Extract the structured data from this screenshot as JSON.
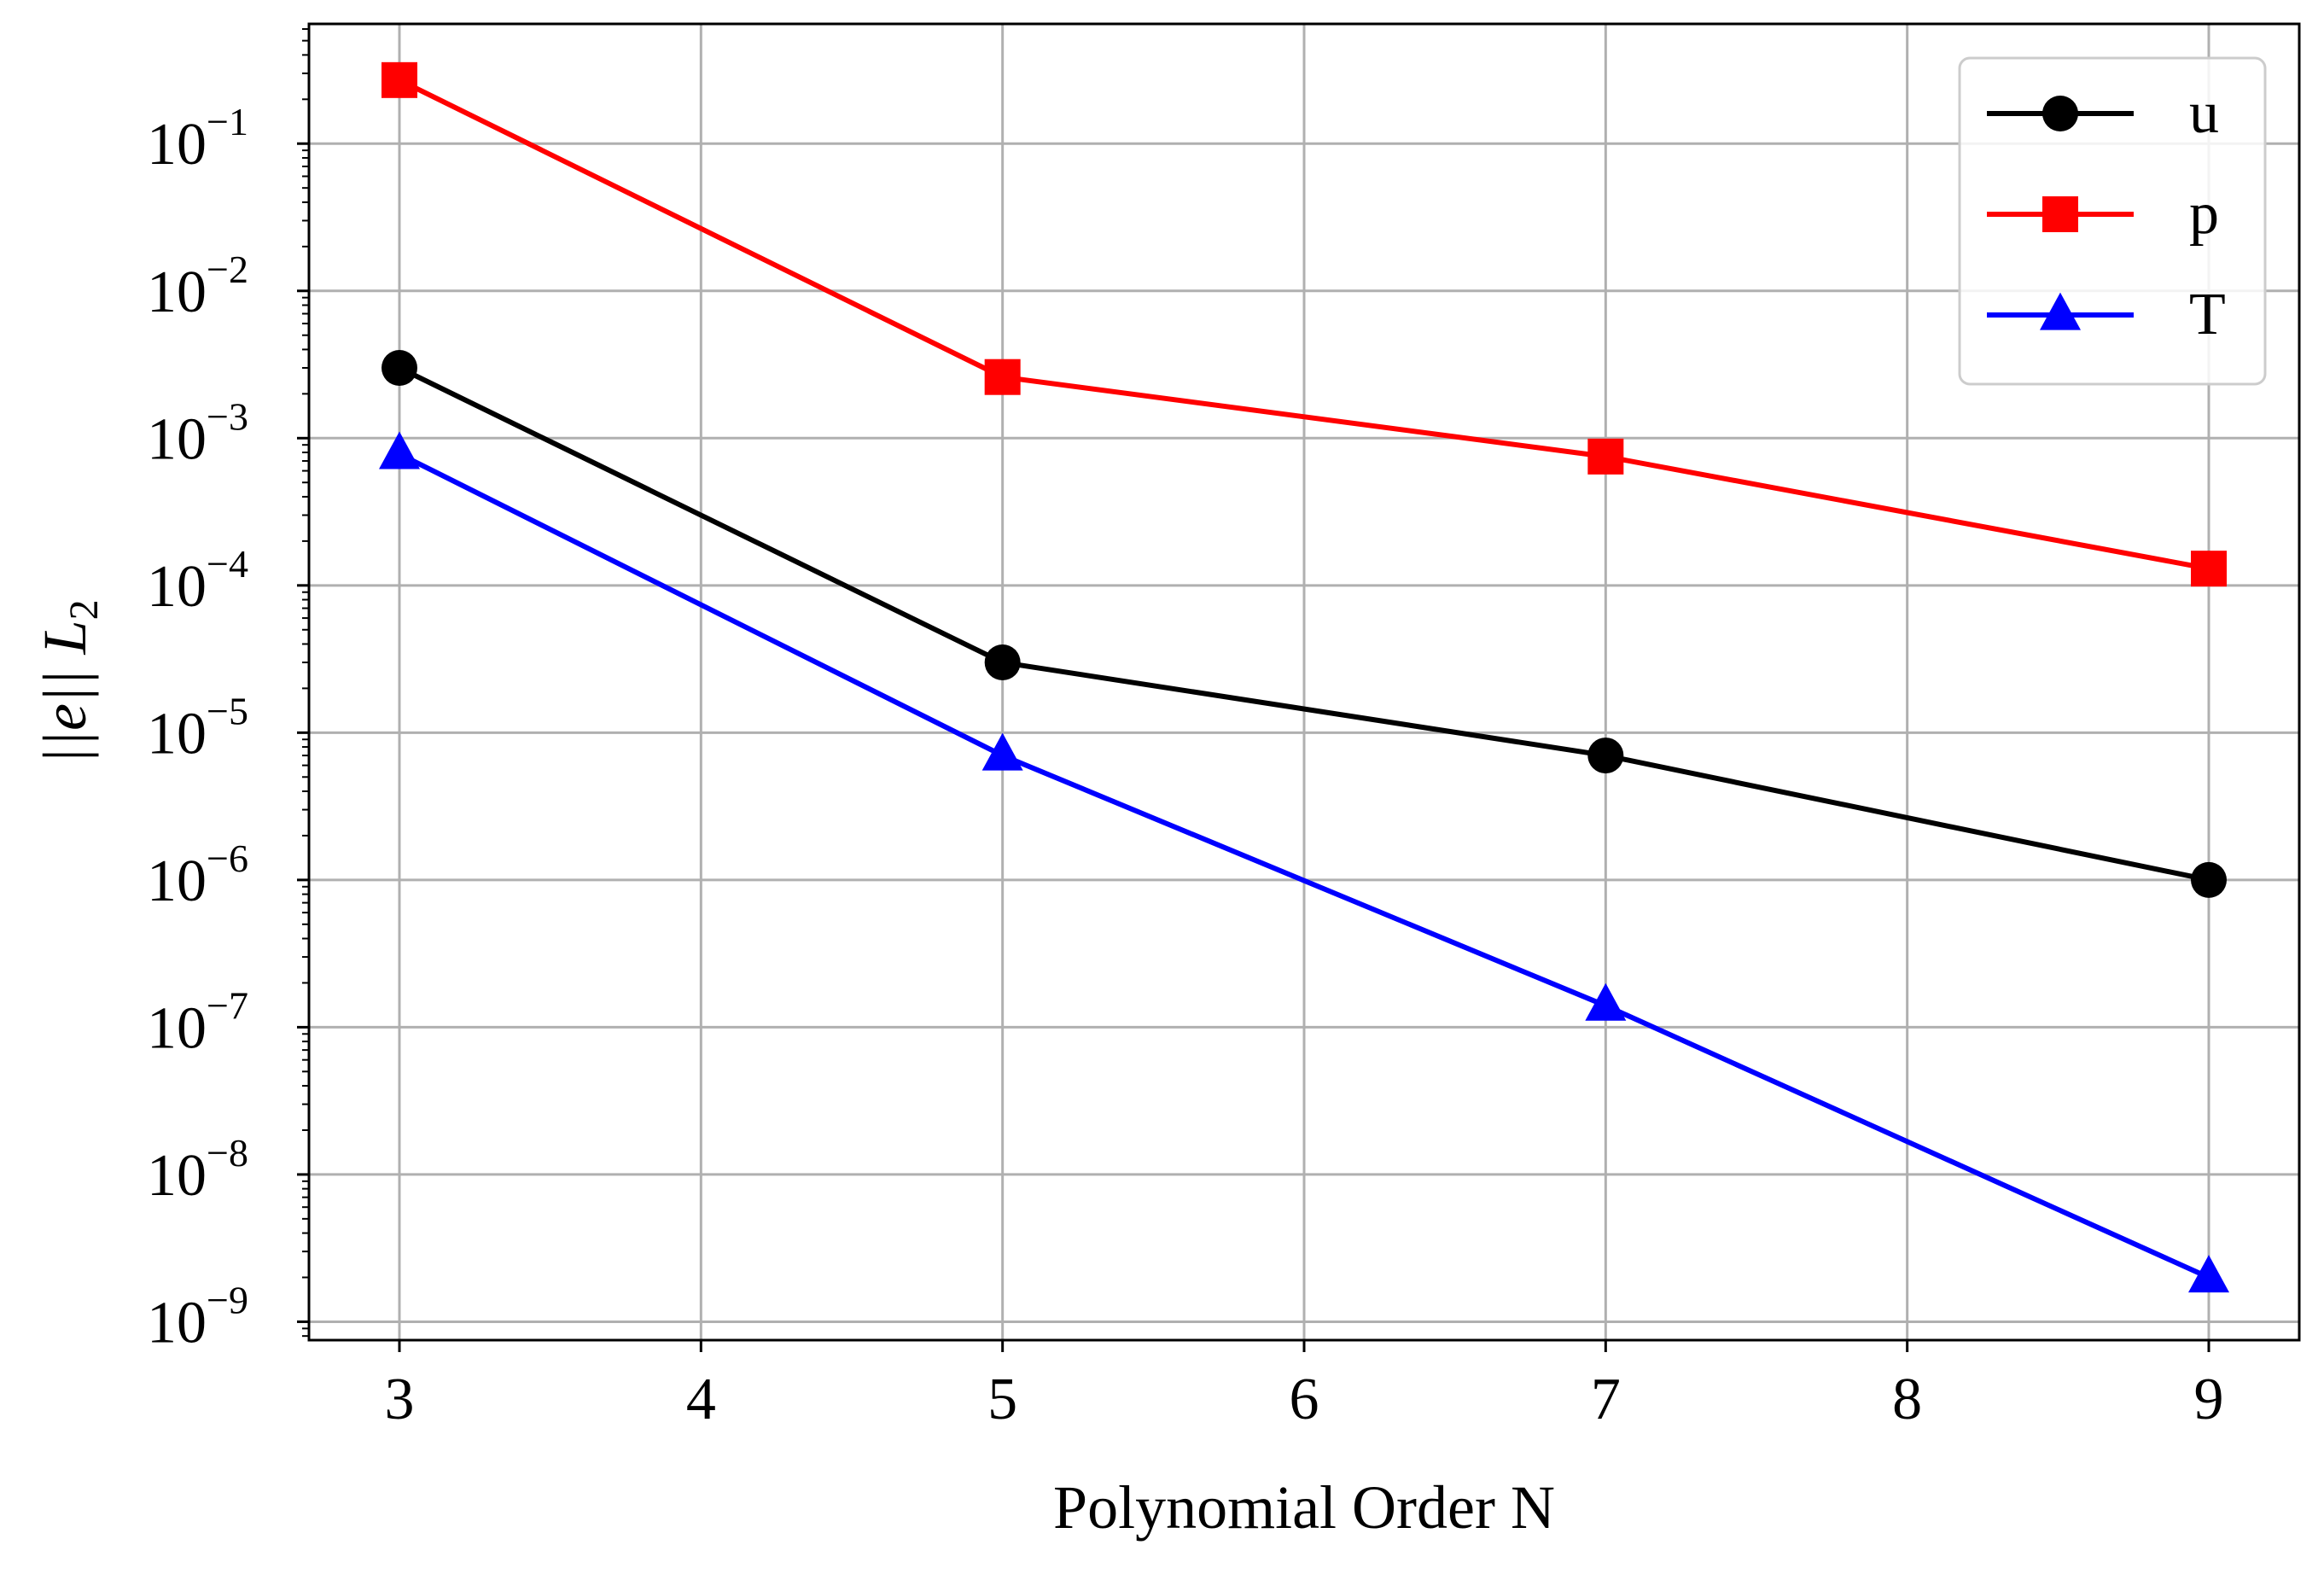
{
  "chart_data": {
    "type": "line",
    "title": "",
    "xlabel": "Polynomial Order N",
    "ylabel": "||e|| L",
    "ylabel_subscript": "2",
    "yscale": "log",
    "xlim": [
      2.7,
      9.3
    ],
    "ylim": [
      7.5e-10,
      0.65
    ],
    "grid": true,
    "legend_position": "top-right",
    "x": [
      3,
      5,
      7,
      9
    ],
    "xticks": [
      {
        "value": 3,
        "label": "3"
      },
      {
        "value": 4,
        "label": "4"
      },
      {
        "value": 5,
        "label": "5"
      },
      {
        "value": 6,
        "label": "6"
      },
      {
        "value": 7,
        "label": "7"
      },
      {
        "value": 8,
        "label": "8"
      },
      {
        "value": 9,
        "label": "9"
      }
    ],
    "yticks": [
      {
        "exponent": -1,
        "base": "10",
        "power": "−1"
      },
      {
        "exponent": -2,
        "base": "10",
        "power": "−2"
      },
      {
        "exponent": -3,
        "base": "10",
        "power": "−3"
      },
      {
        "exponent": -4,
        "base": "10",
        "power": "−4"
      },
      {
        "exponent": -5,
        "base": "10",
        "power": "−5"
      },
      {
        "exponent": -6,
        "base": "10",
        "power": "−6"
      },
      {
        "exponent": -7,
        "base": "10",
        "power": "−7"
      },
      {
        "exponent": -8,
        "base": "10",
        "power": "−8"
      },
      {
        "exponent": -9,
        "base": "10",
        "power": "−9"
      }
    ],
    "series": [
      {
        "name": "u",
        "color": "#000000",
        "marker": "circle",
        "values": [
          0.003,
          3e-05,
          7e-06,
          1e-06
        ]
      },
      {
        "name": "p",
        "color": "#ff0000",
        "marker": "square",
        "values": [
          0.27,
          0.0026,
          0.00075,
          0.00013
        ]
      },
      {
        "name": "T",
        "color": "#0000ff",
        "marker": "triangle",
        "values": [
          0.00078,
          7e-06,
          1.4e-07,
          2e-09
        ]
      }
    ]
  }
}
